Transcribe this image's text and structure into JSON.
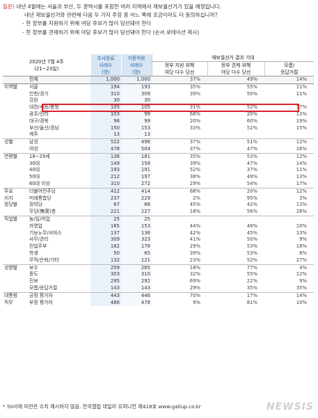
{
  "question": {
    "label": "질문)",
    "line1": "내년 4월에는 서울과 부산, 두 광역시를 포함한 여러 지역에서 재보궐선거가 있을 예정입니다.",
    "line2": "내년 재보궐선거와 관련해 다음 두 가지 주장 중 어느 쪽에 조금이라도 더 동의하십니까?",
    "line3": "- 현 정부를 지원하기 위해 여당 후보가 많이 당선돼야 한다",
    "line4": "- 현 정부를 견제하기 위해 야당 후보가 많이 당선돼야 한다 (순서 로테이션 제시)"
  },
  "header": {
    "date": "2020년 7월 4주",
    "date_range": "(21~23일)",
    "col_completed": [
      "조사완료",
      "사례수",
      "(명)"
    ],
    "col_weighted": [
      "가중적용",
      "사례수",
      "(명)"
    ],
    "group": "재보궐선거 결과 기대",
    "col_a": [
      "정부 지원 위해",
      "여당 다수 당선"
    ],
    "col_b": [
      "정부 견제 위해",
      "야당 다수 당선"
    ],
    "col_c": [
      "모름/",
      "응답거절"
    ]
  },
  "rows": [
    {
      "g": "",
      "s": "전체",
      "n1": "1,000",
      "n2": "1,000",
      "a": "37%",
      "b": "49%",
      "c": "14%",
      "cls": "total"
    },
    {
      "g": "지역별",
      "s": "서울",
      "n1": "194",
      "n2": "193",
      "a": "35%",
      "b": "55%",
      "c": "11%",
      "cls": "sep"
    },
    {
      "g": "",
      "s": "인천/경기",
      "n1": "310",
      "n2": "309",
      "a": "39%",
      "b": "50%",
      "c": "11%"
    },
    {
      "g": "",
      "s": "강원",
      "n1": "30",
      "n2": "30",
      "a": "",
      "b": "",
      "c": ""
    },
    {
      "g": "",
      "s": "대전/세종/충청",
      "n1": "105",
      "n2": "105",
      "a": "31%",
      "b": "52%",
      "c": "17%"
    },
    {
      "g": "",
      "s": "광주/전라",
      "n1": "103",
      "n2": "99",
      "a": "68%",
      "b": "20%",
      "c": "13%"
    },
    {
      "g": "",
      "s": "대구/경북",
      "n1": "96",
      "n2": "99",
      "a": "20%",
      "b": "60%",
      "c": "19%"
    },
    {
      "g": "",
      "s": "부산/울산/경남",
      "n1": "150",
      "n2": "153",
      "a": "33%",
      "b": "52%",
      "c": "15%"
    },
    {
      "g": "",
      "s": "제주",
      "n1": "13",
      "n2": "13",
      "a": "",
      "b": "",
      "c": ""
    },
    {
      "g": "성별",
      "s": "남성",
      "n1": "522",
      "n2": "496",
      "a": "37%",
      "b": "51%",
      "c": "12%",
      "cls": "sep"
    },
    {
      "g": "",
      "s": "여성",
      "n1": "478",
      "n2": "504",
      "a": "37%",
      "b": "47%",
      "c": "16%"
    },
    {
      "g": "연령별",
      "s": "18~29세",
      "n1": "136",
      "n2": "181",
      "a": "35%",
      "b": "53%",
      "c": "12%",
      "cls": "sep"
    },
    {
      "g": "",
      "s": "30대",
      "n1": "149",
      "n2": "158",
      "a": "39%",
      "b": "47%",
      "c": "14%"
    },
    {
      "g": "",
      "s": "40대",
      "n1": "193",
      "n2": "191",
      "a": "52%",
      "b": "37%",
      "c": "11%"
    },
    {
      "g": "",
      "s": "50대",
      "n1": "212",
      "n2": "197",
      "a": "38%",
      "b": "49%",
      "c": "13%"
    },
    {
      "g": "",
      "s": "60대 이상",
      "n1": "310",
      "n2": "272",
      "a": "29%",
      "b": "54%",
      "c": "17%"
    },
    {
      "g": "주요",
      "s": "더불어민주당",
      "n1": "412",
      "n2": "414",
      "a": "68%",
      "b": "20%",
      "c": "12%",
      "cls": "sep"
    },
    {
      "g": "지지",
      "s": "미래통합당",
      "n1": "237",
      "n2": "229",
      "a": "2%",
      "b": "95%",
      "c": "3%"
    },
    {
      "g": "정당별",
      "s": "정의당",
      "n1": "67",
      "n2": "68",
      "a": "45%",
      "b": "42%",
      "c": "13%"
    },
    {
      "g": "",
      "s": "무당(無黨)층",
      "n1": "221",
      "n2": "227",
      "a": "18%",
      "b": "56%",
      "c": "26%"
    },
    {
      "g": "직업별",
      "s": "농/임/어업",
      "n1": "25",
      "n2": "25",
      "a": "",
      "b": "",
      "c": "",
      "cls": "sep"
    },
    {
      "g": "",
      "s": "자영업",
      "n1": "165",
      "n2": "153",
      "a": "44%",
      "b": "46%",
      "c": "10%"
    },
    {
      "g": "",
      "s": "기능노무/서비스",
      "n1": "137",
      "n2": "136",
      "a": "42%",
      "b": "45%",
      "c": "13%"
    },
    {
      "g": "",
      "s": "사무/관리",
      "n1": "309",
      "n2": "323",
      "a": "41%",
      "b": "50%",
      "c": "9%"
    },
    {
      "g": "",
      "s": "전업주부",
      "n1": "182",
      "n2": "178",
      "a": "29%",
      "b": "53%",
      "c": "18%"
    },
    {
      "g": "",
      "s": "학생",
      "n1": "50",
      "n2": "65",
      "a": "39%",
      "b": "53%",
      "c": "8%"
    },
    {
      "g": "",
      "s": "무직/은퇴/기타",
      "n1": "132",
      "n2": "121",
      "a": "23%",
      "b": "52%",
      "c": "27%"
    },
    {
      "g": "성향별",
      "s": "보수",
      "n1": "259",
      "n2": "265",
      "a": "18%",
      "b": "77%",
      "c": "4%",
      "cls": "sep"
    },
    {
      "g": "",
      "s": "중도",
      "n1": "303",
      "n2": "310",
      "a": "32%",
      "b": "55%",
      "c": "12%"
    },
    {
      "g": "",
      "s": "진보",
      "n1": "295",
      "n2": "292",
      "a": "69%",
      "b": "22%",
      "c": "9%"
    },
    {
      "g": "",
      "s": "모름/응답거절",
      "n1": "143",
      "n2": "143",
      "a": "29%",
      "b": "35%",
      "c": "35%"
    },
    {
      "g": "대통령",
      "s": "긍정 평가자",
      "n1": "443",
      "n2": "446",
      "a": "70%",
      "b": "17%",
      "c": "14%",
      "cls": "sep"
    },
    {
      "g": "직무",
      "s": "부정 평가자",
      "n1": "486",
      "n2": "478",
      "a": "9%",
      "b": "81%",
      "c": "10%"
    }
  ],
  "footnote": "* 50사례 미만은 수치 제시하지 않음. 한국갤럽 데일리 오피니언 제418호 www.gallup.co.kr",
  "watermark": "NEWSIS"
}
